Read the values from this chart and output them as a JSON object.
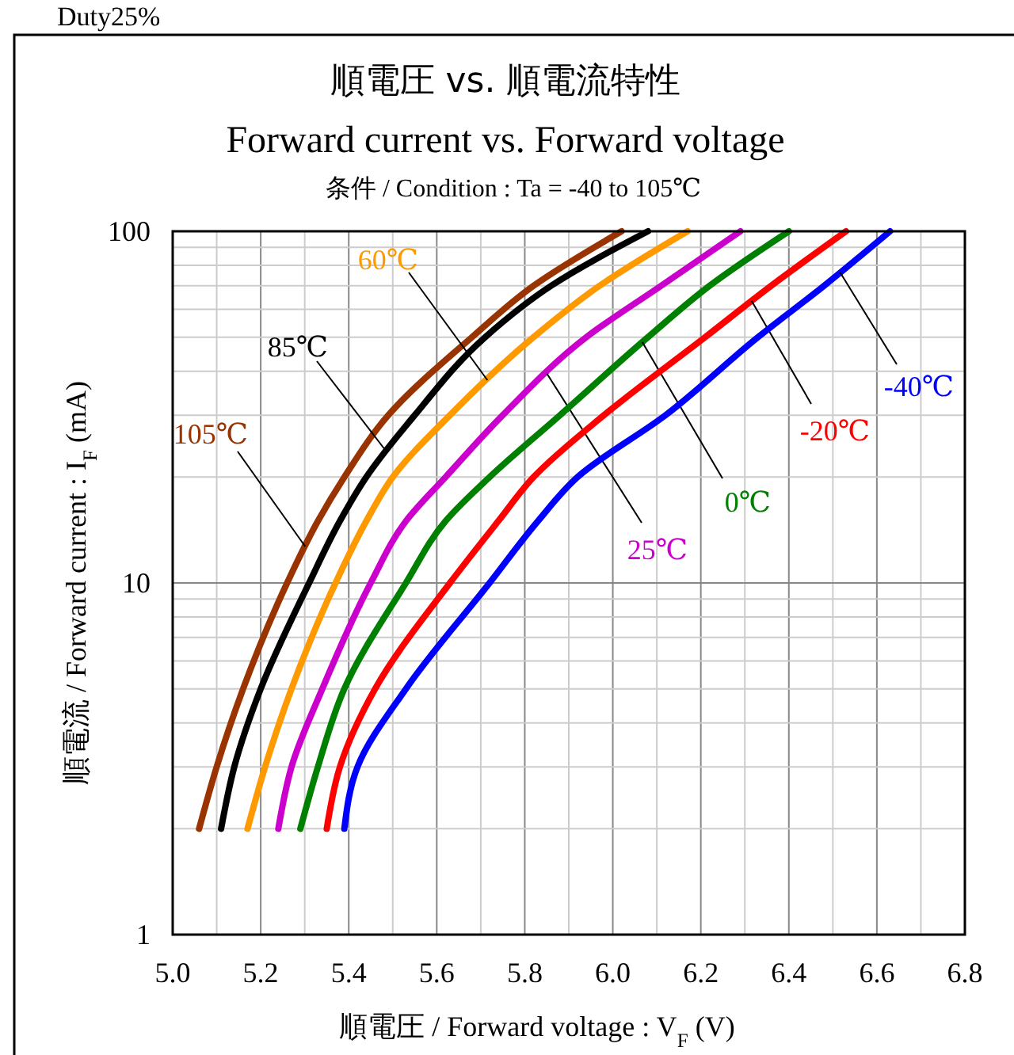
{
  "chart_data": {
    "type": "line",
    "title": "順電圧 vs. 順電流特性",
    "subtitle": "Forward current vs. Forward voltage",
    "xlabel": "順電圧 / Forward voltage : V$_{F}$ (V)",
    "ylabel": "順電流 / Forward current : I$_{F}$ (mA)",
    "annotations": [
      "Duty25%",
      "条件 / Condition : Ta = -40 to 105℃"
    ],
    "log": "y",
    "grid": true,
    "marker": "none",
    "line_style": "solid",
    "xlim": [
      5.0,
      6.8
    ],
    "xticks": [
      {
        "value": 5.0,
        "label": "5.0"
      },
      5.2,
      5.4,
      5.6,
      5.8,
      {
        "value": 6.0,
        "label": "6.0"
      },
      6.2,
      6.4,
      6.6,
      6.8
    ],
    "ylim": [
      1,
      100
    ],
    "yticks": [
      1,
      10,
      100
    ],
    "series": [
      {
        "name": "105℃",
        "color": "#993300",
        "x": [
          5.06,
          5.1,
          5.16,
          5.26,
          5.33,
          5.39,
          5.49,
          5.68,
          5.82,
          6.02
        ],
        "values": [
          2,
          3,
          5,
          10,
          15,
          20,
          30,
          50,
          70,
          100
        ]
      },
      {
        "name": "85℃",
        "color": "#000000",
        "x": [
          5.11,
          5.14,
          5.2,
          5.31,
          5.38,
          5.44,
          5.55,
          5.71,
          5.86,
          6.08
        ],
        "values": [
          2,
          3,
          5,
          10,
          15,
          20,
          30,
          50,
          70,
          100
        ]
      },
      {
        "name": "60℃",
        "color": "#ff9900",
        "x": [
          5.17,
          5.21,
          5.27,
          5.37,
          5.44,
          5.5,
          5.63,
          5.82,
          5.97,
          6.17
        ],
        "values": [
          2,
          3,
          5,
          10,
          15,
          20,
          30,
          50,
          70,
          100
        ]
      },
      {
        "name": "25℃",
        "color": "#cc00cc",
        "x": [
          5.24,
          5.27,
          5.34,
          5.45,
          5.53,
          5.62,
          5.75,
          5.94,
          6.11,
          6.29
        ],
        "values": [
          2,
          3,
          5,
          10,
          15,
          20,
          30,
          50,
          70,
          100
        ]
      },
      {
        "name": "0℃",
        "color": "#008000",
        "x": [
          5.29,
          5.33,
          5.39,
          5.53,
          5.62,
          5.72,
          5.88,
          6.08,
          6.22,
          6.4
        ],
        "values": [
          2,
          3,
          5,
          10,
          15,
          20,
          30,
          50,
          70,
          100
        ]
      },
      {
        "name": "-20℃",
        "color": "#ff0000",
        "x": [
          5.35,
          5.38,
          5.46,
          5.63,
          5.74,
          5.82,
          5.98,
          6.21,
          6.36,
          6.53
        ],
        "values": [
          2,
          3,
          5,
          10,
          15,
          20,
          30,
          50,
          70,
          100
        ]
      },
      {
        "name": "-40℃",
        "color": "#0000ff",
        "x": [
          5.39,
          5.42,
          5.53,
          5.72,
          5.83,
          5.92,
          6.12,
          6.33,
          6.48,
          6.63
        ],
        "values": [
          2,
          3,
          5,
          10,
          15,
          20,
          30,
          50,
          70,
          100
        ]
      }
    ]
  }
}
